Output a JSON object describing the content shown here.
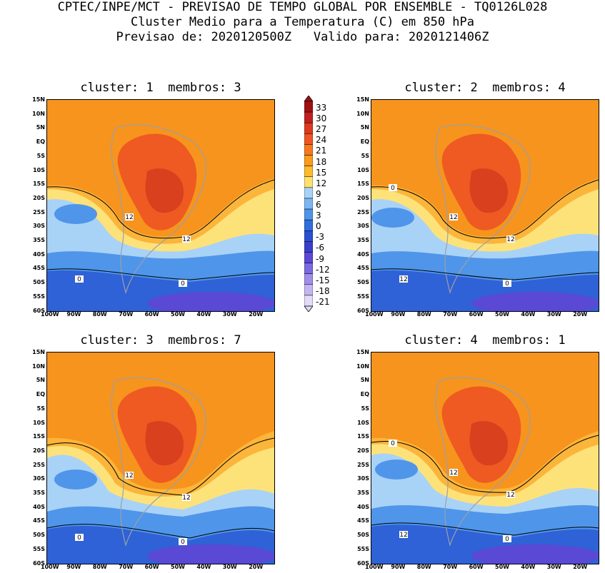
{
  "header": {
    "line1": "CPTEC/INPE/MCT - PREVISAO DE TEMPO GLOBAL POR ENSEMBLE - TQ0126L028",
    "line2": "Cluster Medio para a Temperatura (C) em 850 hPa",
    "line3": "Previsao de: 2020120500Z   Valido para: 2020121406Z"
  },
  "panels": [
    {
      "title": "cluster: 1  membros: 3",
      "contour_labels": [
        "12",
        "12",
        "0",
        "0"
      ]
    },
    {
      "title": "cluster: 2  membros: 4",
      "contour_labels": [
        "12",
        "12",
        "12",
        "0",
        "0"
      ]
    },
    {
      "title": "cluster: 3  membros: 7",
      "contour_labels": [
        "12",
        "12",
        "0",
        "0"
      ]
    },
    {
      "title": "cluster: 4  membros: 1",
      "contour_labels": [
        "12",
        "12",
        "12",
        "0",
        "0"
      ]
    }
  ],
  "lat_ticks": [
    "15N",
    "10N",
    "5N",
    "EQ",
    "5S",
    "10S",
    "15S",
    "20S",
    "25S",
    "30S",
    "35S",
    "40S",
    "45S",
    "50S",
    "55S",
    "60S"
  ],
  "lon_ticks": [
    "100W",
    "90W",
    "80W",
    "70W",
    "60W",
    "50W",
    "40W",
    "30W",
    "20W"
  ],
  "colorbar": {
    "labels": [
      "33",
      "30",
      "27",
      "24",
      "21",
      "18",
      "15",
      "12",
      "9",
      "6",
      "3",
      "0",
      "-3",
      "-6",
      "-9",
      "-12",
      "-15",
      "-18",
      "-21"
    ],
    "colors": [
      "#a01010",
      "#c02020",
      "#dc3a1e",
      "#ee5522",
      "#f7771f",
      "#f99b1c",
      "#fbbb2c",
      "#fde070",
      "#a9d2f7",
      "#7ab6f2",
      "#4f95ea",
      "#2f6fdb",
      "#2a4fd1",
      "#3a3fc9",
      "#5a49d4",
      "#7b6ae2",
      "#a08eea",
      "#c4b5f2",
      "#e3dbf8"
    ]
  },
  "colors": {
    "deep_red": "#d8401e",
    "red": "#ee5a22",
    "orange": "#f7941d",
    "light_orange": "#fbb53a",
    "yellow": "#fde27a",
    "lightblue": "#a9d2f7",
    "blue": "#4f95ea",
    "darkblue": "#2e62d6",
    "purple": "#5a49d4"
  }
}
